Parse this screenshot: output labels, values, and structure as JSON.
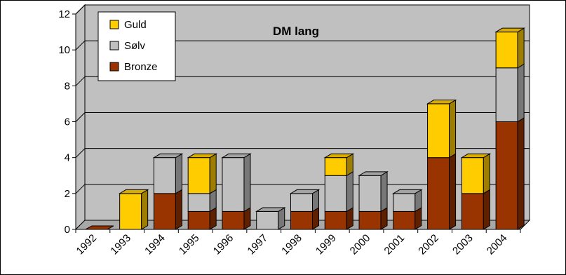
{
  "chart_data": {
    "type": "bar",
    "stacked": true,
    "three_d": true,
    "title": "DM lang",
    "xlabel": "",
    "ylabel": "",
    "ylim": [
      0,
      12
    ],
    "yticks": [
      0,
      2,
      4,
      6,
      8,
      10,
      12
    ],
    "grid": true,
    "legend_position": "top-left",
    "categories": [
      "1992",
      "1993",
      "1994",
      "1995",
      "1996",
      "1997",
      "1998",
      "1999",
      "2000",
      "2001",
      "2002",
      "2003",
      "2004"
    ],
    "series": [
      {
        "name": "Bronze",
        "color": "#993300",
        "values": [
          0,
          0,
          2,
          1,
          1,
          0,
          1,
          1,
          1,
          1,
          4,
          2,
          6
        ]
      },
      {
        "name": "Sølv",
        "color": "#C0C0C0",
        "values": [
          0,
          0,
          2,
          1,
          3,
          1,
          1,
          2,
          2,
          1,
          0,
          0,
          3
        ]
      },
      {
        "name": "Guld",
        "color": "#FFCC00",
        "values": [
          0,
          2,
          0,
          2,
          0,
          0,
          0,
          1,
          0,
          0,
          3,
          2,
          2
        ]
      }
    ],
    "legend_order": [
      "Guld",
      "Sølv",
      "Bronze"
    ],
    "wall_color": "#C0C0C0"
  }
}
